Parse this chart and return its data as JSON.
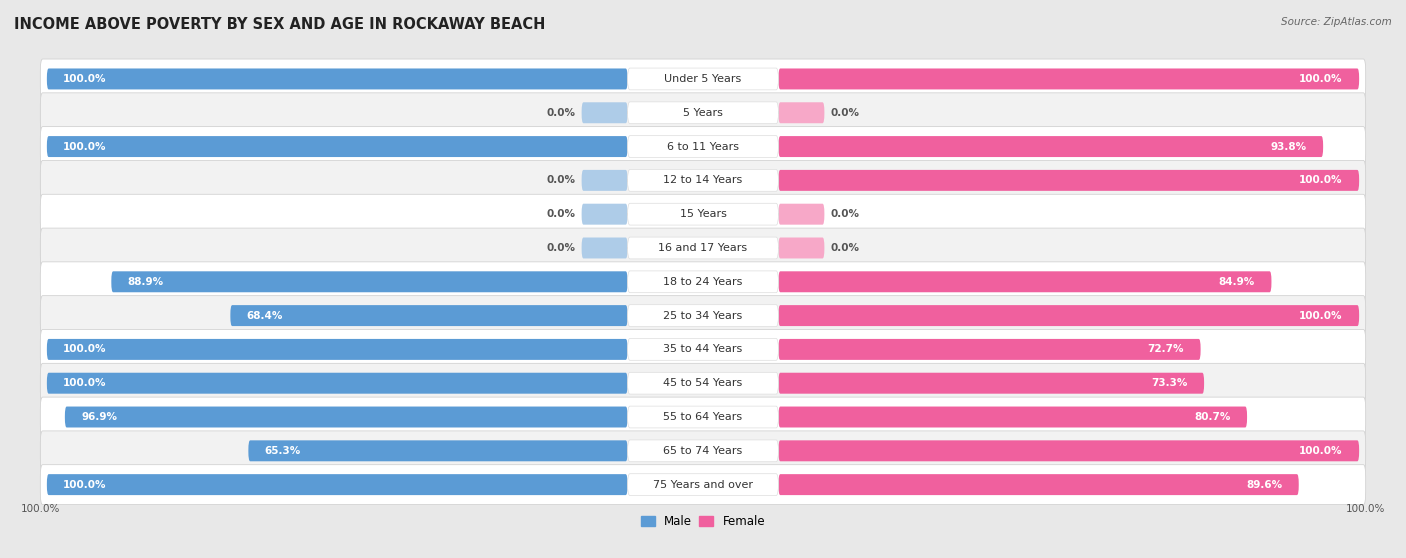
{
  "title": "INCOME ABOVE POVERTY BY SEX AND AGE IN ROCKAWAY BEACH",
  "source": "Source: ZipAtlas.com",
  "categories": [
    "Under 5 Years",
    "5 Years",
    "6 to 11 Years",
    "12 to 14 Years",
    "15 Years",
    "16 and 17 Years",
    "18 to 24 Years",
    "25 to 34 Years",
    "35 to 44 Years",
    "45 to 54 Years",
    "55 to 64 Years",
    "65 to 74 Years",
    "75 Years and over"
  ],
  "male": [
    100.0,
    0.0,
    100.0,
    0.0,
    0.0,
    0.0,
    88.9,
    68.4,
    100.0,
    100.0,
    96.9,
    65.3,
    100.0
  ],
  "female": [
    100.0,
    0.0,
    93.8,
    100.0,
    0.0,
    0.0,
    84.9,
    100.0,
    72.7,
    73.3,
    80.7,
    100.0,
    89.6
  ],
  "male_color": "#5b9bd5",
  "female_color": "#f0609e",
  "male_color_zero": "#aecce8",
  "female_color_zero": "#f7a8c8",
  "row_color_even": "#ffffff",
  "row_color_odd": "#f2f2f2",
  "bg_color": "#e8e8e8",
  "label_bg_color": "#ffffff",
  "title_fontsize": 10.5,
  "label_fontsize": 8.0,
  "value_fontsize": 7.5,
  "bar_height": 0.62,
  "max_val": 100.0,
  "zero_bar_width": 7.0
}
